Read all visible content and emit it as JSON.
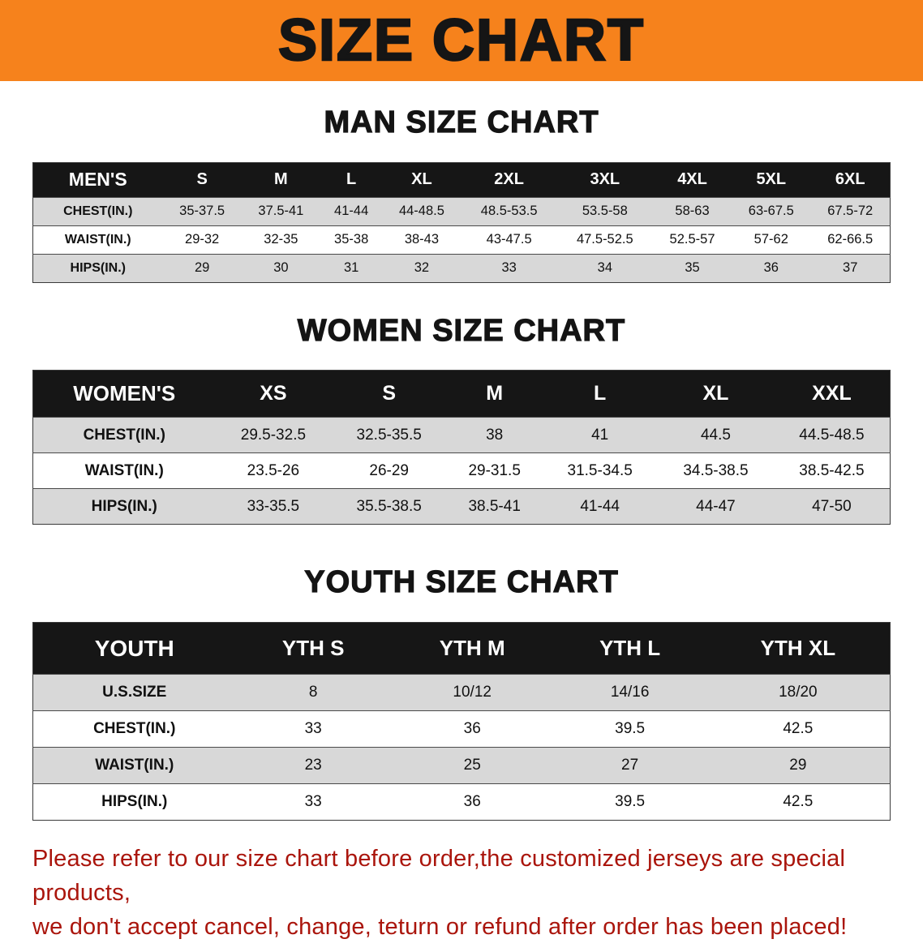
{
  "banner": {
    "title": "SIZE CHART",
    "bg_color": "#f6821c"
  },
  "sections": {
    "men": {
      "heading": "MAN SIZE CHART",
      "table": {
        "header": [
          "MEN'S",
          "S",
          "M",
          "L",
          "XL",
          "2XL",
          "3XL",
          "4XL",
          "5XL",
          "6XL"
        ],
        "rows": [
          {
            "label": "CHEST(IN.)",
            "values": [
              "35-37.5",
              "37.5-41",
              "41-44",
              "44-48.5",
              "48.5-53.5",
              "53.5-58",
              "58-63",
              "63-67.5",
              "67.5-72"
            ]
          },
          {
            "label": "WAIST(IN.)",
            "values": [
              "29-32",
              "32-35",
              "35-38",
              "38-43",
              "43-47.5",
              "47.5-52.5",
              "52.5-57",
              "57-62",
              "62-66.5"
            ]
          },
          {
            "label": "HIPS(IN.)",
            "values": [
              "29",
              "30",
              "31",
              "32",
              "33",
              "34",
              "35",
              "36",
              "37"
            ]
          }
        ]
      }
    },
    "women": {
      "heading": "WOMEN SIZE CHART",
      "table": {
        "header": [
          "WOMEN'S",
          "XS",
          "S",
          "M",
          "L",
          "XL",
          "XXL"
        ],
        "rows": [
          {
            "label": "CHEST(IN.)",
            "values": [
              "29.5-32.5",
              "32.5-35.5",
              "38",
              "41",
              "44.5",
              "44.5-48.5"
            ]
          },
          {
            "label": "WAIST(IN.)",
            "values": [
              "23.5-26",
              "26-29",
              "29-31.5",
              "31.5-34.5",
              "34.5-38.5",
              "38.5-42.5"
            ]
          },
          {
            "label": "HIPS(IN.)",
            "values": [
              "33-35.5",
              "35.5-38.5",
              "38.5-41",
              "41-44",
              "44-47",
              "47-50"
            ]
          }
        ]
      }
    },
    "youth": {
      "heading": "YOUTH SIZE CHART",
      "table": {
        "header": [
          "YOUTH",
          "YTH S",
          "YTH M",
          "YTH L",
          "YTH XL"
        ],
        "rows": [
          {
            "label": "U.S.SIZE",
            "values": [
              "8",
              "10/12",
              "14/16",
              "18/20"
            ]
          },
          {
            "label": "CHEST(IN.)",
            "values": [
              "33",
              "36",
              "39.5",
              "42.5"
            ]
          },
          {
            "label": "WAIST(IN.)",
            "values": [
              "23",
              "25",
              "27",
              "29"
            ]
          },
          {
            "label": "HIPS(IN.)",
            "values": [
              "33",
              "36",
              "39.5",
              "42.5"
            ]
          }
        ]
      }
    }
  },
  "disclaimer": {
    "line1": "Please refer to our size chart before order,the customized jerseys are special products,",
    "line2": "we don't accept cancel, change, teturn or refund after order has been placed!",
    "color": "#aa150c"
  }
}
